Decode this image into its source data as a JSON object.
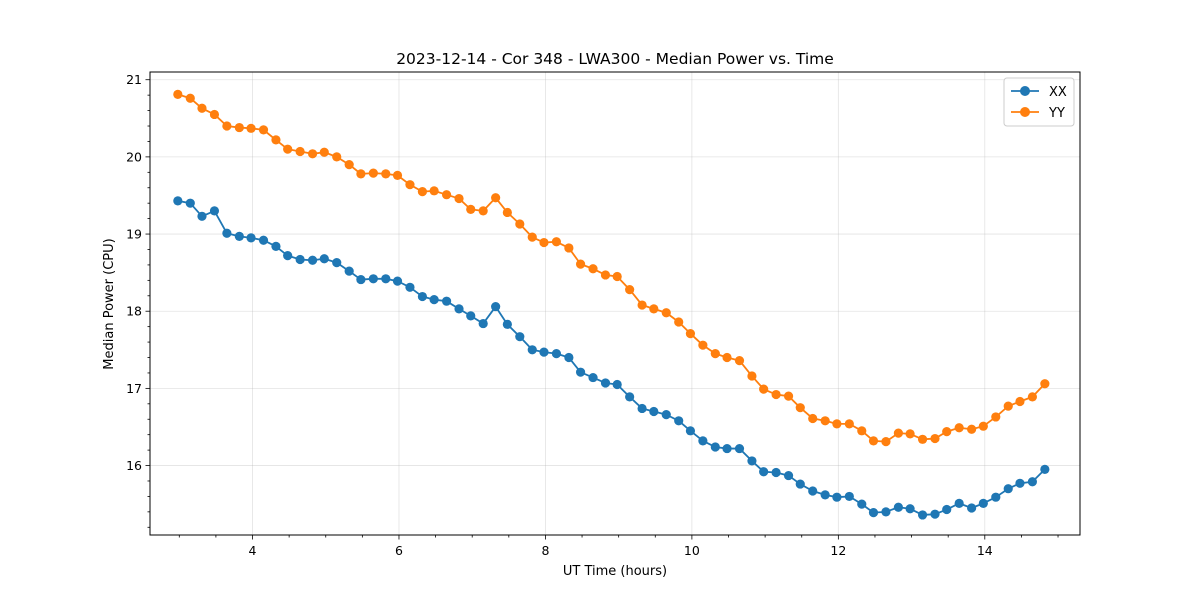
{
  "chart_data": {
    "type": "line",
    "title": "2023-12-14 - Cor 348 - LWA300 - Median Power vs. Time",
    "xlabel": "UT Time (hours)",
    "ylabel": "Median Power (CPU)",
    "xlim": [
      2.6,
      15.3
    ],
    "ylim": [
      15.1,
      21.1
    ],
    "xticks": [
      4,
      6,
      8,
      10,
      12,
      14
    ],
    "yticks": [
      16,
      17,
      18,
      19,
      20,
      21
    ],
    "xtick_labels": [
      "4",
      "6",
      "8",
      "10",
      "12",
      "14"
    ],
    "ytick_labels": [
      "16",
      "17",
      "18",
      "19",
      "20",
      "21"
    ],
    "grid": true,
    "legend_position": "top-right",
    "x": [
      2.98,
      3.15,
      3.31,
      3.48,
      3.65,
      3.82,
      3.98,
      4.15,
      4.32,
      4.48,
      4.65,
      4.82,
      4.98,
      5.15,
      5.32,
      5.48,
      5.65,
      5.82,
      5.98,
      6.15,
      6.32,
      6.48,
      6.65,
      6.82,
      6.98,
      7.15,
      7.32,
      7.48,
      7.65,
      7.82,
      7.98,
      8.15,
      8.32,
      8.48,
      8.65,
      8.82,
      8.98,
      9.15,
      9.32,
      9.48,
      9.65,
      9.82,
      9.98,
      10.15,
      10.32,
      10.48,
      10.65,
      10.82,
      10.98,
      11.15,
      11.32,
      11.48,
      11.65,
      11.82,
      11.98,
      12.15,
      12.32,
      12.48,
      12.65,
      12.82,
      12.98,
      13.15,
      13.32,
      13.48,
      13.65,
      13.82,
      13.98,
      14.15,
      14.32,
      14.48,
      14.65,
      14.82
    ],
    "series": [
      {
        "name": "XX",
        "color": "#1f77b4",
        "values": [
          19.43,
          19.4,
          19.23,
          19.3,
          19.01,
          18.97,
          18.95,
          18.92,
          18.84,
          18.72,
          18.67,
          18.66,
          18.68,
          18.63,
          18.52,
          18.41,
          18.42,
          18.42,
          18.39,
          18.31,
          18.19,
          18.15,
          18.13,
          18.03,
          17.94,
          17.84,
          18.06,
          17.83,
          17.67,
          17.5,
          17.47,
          17.45,
          17.4,
          17.21,
          17.14,
          17.07,
          17.05,
          16.89,
          16.74,
          16.7,
          16.66,
          16.58,
          16.45,
          16.32,
          16.24,
          16.22,
          16.22,
          16.06,
          15.92,
          15.91,
          15.87,
          15.76,
          15.67,
          15.62,
          15.59,
          15.6,
          15.5,
          15.39,
          15.4,
          15.46,
          15.44,
          15.36,
          15.37,
          15.43,
          15.51,
          15.45,
          15.51,
          15.59,
          15.7,
          15.77,
          15.79,
          15.95
        ]
      },
      {
        "name": "YY",
        "color": "#ff7f0e",
        "values": [
          20.81,
          20.76,
          20.63,
          20.55,
          20.4,
          20.38,
          20.37,
          20.35,
          20.22,
          20.1,
          20.07,
          20.04,
          20.06,
          20.0,
          19.9,
          19.78,
          19.79,
          19.78,
          19.76,
          19.64,
          19.55,
          19.56,
          19.51,
          19.46,
          19.32,
          19.3,
          19.47,
          19.28,
          19.13,
          18.96,
          18.89,
          18.9,
          18.82,
          18.61,
          18.55,
          18.47,
          18.45,
          18.28,
          18.08,
          18.03,
          17.98,
          17.86,
          17.71,
          17.56,
          17.45,
          17.4,
          17.36,
          17.16,
          16.99,
          16.92,
          16.9,
          16.75,
          16.61,
          16.58,
          16.54,
          16.54,
          16.45,
          16.32,
          16.31,
          16.42,
          16.41,
          16.34,
          16.35,
          16.44,
          16.49,
          16.47,
          16.51,
          16.63,
          16.77,
          16.83,
          16.89,
          17.06
        ]
      }
    ]
  }
}
